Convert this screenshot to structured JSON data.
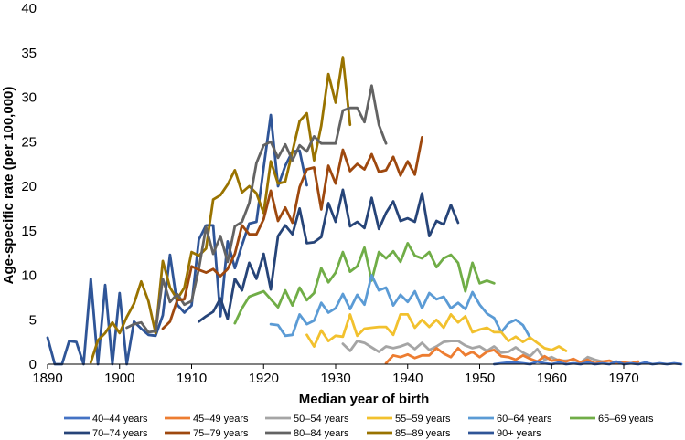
{
  "chart_data": {
    "type": "line",
    "title": "",
    "xlabel": "Median year of birth",
    "ylabel": "Age-specific rate (per 100,000)",
    "xlim": [
      1890,
      1978
    ],
    "ylim": [
      0,
      40
    ],
    "xticks": [
      1890,
      1900,
      1910,
      1920,
      1930,
      1940,
      1950,
      1960,
      1970
    ],
    "yticks": [
      0,
      5,
      10,
      15,
      20,
      25,
      30,
      35,
      40
    ],
    "grid": false,
    "legend_position": "bottom",
    "series": [
      {
        "name": "40–44 years",
        "color": "#4472c4",
        "x": [
          1952,
          1953,
          1954,
          1955,
          1956,
          1957,
          1958,
          1959,
          1960,
          1961,
          1962,
          1963,
          1964,
          1965,
          1966,
          1967,
          1968,
          1969,
          1970,
          1971,
          1972,
          1973,
          1974,
          1975,
          1976,
          1977,
          1978
        ],
        "y": [
          0,
          0.1,
          0.2,
          0.2,
          0.1,
          0,
          0.3,
          0.1,
          0,
          0.2,
          0,
          0.1,
          0,
          0.2,
          0,
          0.1,
          0,
          0.3,
          0,
          0.1,
          0,
          0.2,
          0,
          0.1,
          0,
          0.1,
          0
        ]
      },
      {
        "name": "45–49 years",
        "color": "#ed7d31",
        "x": [
          1937,
          1938,
          1939,
          1940,
          1941,
          1942,
          1943,
          1944,
          1945,
          1946,
          1947,
          1948,
          1949,
          1950,
          1951,
          1952,
          1953,
          1954,
          1955,
          1956,
          1957,
          1958,
          1959,
          1960,
          1961,
          1962,
          1963,
          1964,
          1965,
          1966,
          1967,
          1968,
          1969,
          1970,
          1971,
          1972
        ],
        "y": [
          0.1,
          1.0,
          0.8,
          1.1,
          0.7,
          1.0,
          1.0,
          1.8,
          1.2,
          0.8,
          1.8,
          1.0,
          1.4,
          0.8,
          1.4,
          1.6,
          0.9,
          0.8,
          0.5,
          1.0,
          0.6,
          0.3,
          0.9,
          0.4,
          0.5,
          0.3,
          0.6,
          0.2,
          0.5,
          0.1,
          0.3,
          0.4,
          0.1,
          0.2,
          0.1,
          0.3
        ]
      },
      {
        "name": "50–54 years",
        "color": "#a5a5a5",
        "x": [
          1931,
          1932,
          1933,
          1934,
          1935,
          1936,
          1937,
          1938,
          1939,
          1940,
          1941,
          1942,
          1943,
          1944,
          1945,
          1946,
          1947,
          1948,
          1949,
          1950,
          1951,
          1952,
          1953,
          1954,
          1955,
          1956,
          1957,
          1958,
          1959,
          1960,
          1961,
          1962,
          1963,
          1964,
          1965,
          1966,
          1967
        ],
        "y": [
          2.3,
          1.5,
          2.6,
          2.4,
          1.9,
          1.4,
          2.0,
          1.8,
          2.0,
          2.3,
          1.7,
          2.4,
          1.6,
          2.0,
          2.5,
          2.6,
          2.6,
          2.1,
          1.8,
          2.0,
          1.5,
          2.0,
          1.3,
          1.4,
          1.9,
          1.3,
          0.9,
          1.7,
          0.5,
          0.8,
          0.4,
          0.4,
          0.5,
          0.2,
          0.8,
          0.5,
          0.3
        ]
      },
      {
        "name": "55–59 years",
        "color": "#f2c12e",
        "x": [
          1926,
          1927,
          1928,
          1929,
          1930,
          1931,
          1932,
          1933,
          1934,
          1935,
          1936,
          1937,
          1938,
          1939,
          1940,
          1941,
          1942,
          1943,
          1944,
          1945,
          1946,
          1947,
          1948,
          1949,
          1950,
          1951,
          1952,
          1953,
          1954,
          1955,
          1956,
          1957,
          1958,
          1959,
          1960,
          1961,
          1962
        ],
        "y": [
          3.3,
          2.0,
          3.8,
          2.6,
          3.2,
          3.1,
          5.6,
          3.2,
          4.0,
          4.1,
          4.2,
          4.2,
          3.3,
          5.6,
          5.6,
          4.1,
          5.0,
          4.2,
          5.0,
          4.1,
          5.6,
          4.7,
          5.4,
          3.6,
          3.9,
          4.1,
          3.6,
          3.6,
          2.6,
          3.1,
          2.5,
          3.0,
          2.4,
          1.8,
          1.6,
          2.0,
          1.5
        ]
      },
      {
        "name": "60–64 years",
        "color": "#5b9bd5",
        "x": [
          1921,
          1922,
          1923,
          1924,
          1925,
          1926,
          1927,
          1928,
          1929,
          1930,
          1931,
          1932,
          1933,
          1934,
          1935,
          1936,
          1937,
          1938,
          1939,
          1940,
          1941,
          1942,
          1943,
          1944,
          1945,
          1946,
          1947,
          1948,
          1949,
          1950,
          1951,
          1952,
          1953,
          1954,
          1955,
          1956,
          1957
        ],
        "y": [
          4.5,
          4.4,
          3.2,
          3.3,
          5.6,
          4.5,
          4.9,
          6.9,
          5.8,
          6.3,
          7.9,
          6.2,
          7.8,
          6.7,
          10.0,
          8.3,
          8.6,
          6.6,
          7.8,
          7.0,
          8.2,
          6.3,
          8.0,
          7.3,
          7.6,
          6.3,
          6.9,
          6.2,
          8.1,
          6.7,
          5.7,
          5.2,
          3.6,
          4.6,
          5.0,
          4.4,
          3.0
        ]
      },
      {
        "name": "65–69 years",
        "color": "#70ad47",
        "x": [
          1916,
          1917,
          1918,
          1919,
          1920,
          1921,
          1922,
          1923,
          1924,
          1925,
          1926,
          1927,
          1928,
          1929,
          1930,
          1931,
          1932,
          1933,
          1934,
          1935,
          1936,
          1937,
          1938,
          1939,
          1940,
          1941,
          1942,
          1943,
          1944,
          1945,
          1946,
          1947,
          1948,
          1949,
          1950,
          1951,
          1952
        ],
        "y": [
          4.6,
          6.3,
          7.6,
          7.9,
          8.2,
          7.3,
          6.4,
          8.3,
          6.6,
          8.6,
          7.2,
          8.0,
          10.8,
          9.2,
          10.3,
          12.6,
          10.4,
          11.0,
          13.1,
          9.4,
          12.6,
          11.9,
          12.7,
          11.5,
          13.6,
          12.2,
          11.9,
          12.6,
          10.9,
          11.9,
          12.3,
          11.4,
          8.2,
          11.4,
          9.1,
          9.4,
          9.1
        ]
      },
      {
        "name": "70–74 years",
        "color": "#264478",
        "x": [
          1911,
          1912,
          1913,
          1914,
          1915,
          1916,
          1917,
          1918,
          1919,
          1920,
          1921,
          1922,
          1923,
          1924,
          1925,
          1926,
          1927,
          1928,
          1929,
          1930,
          1931,
          1932,
          1933,
          1934,
          1935,
          1936,
          1937,
          1938,
          1939,
          1940,
          1941,
          1942,
          1943,
          1944,
          1945,
          1946,
          1947
        ],
        "y": [
          4.8,
          5.4,
          5.9,
          7.4,
          5.1,
          9.6,
          8.3,
          11.4,
          9.6,
          12.4,
          8.4,
          14.4,
          15.6,
          14.6,
          17.5,
          13.6,
          13.7,
          14.3,
          18.1,
          16.0,
          19.6,
          15.5,
          16.0,
          15.3,
          18.7,
          15.2,
          17.0,
          18.3,
          16.1,
          16.4,
          16.0,
          19.2,
          14.4,
          16.1,
          15.7,
          17.9,
          15.9
        ]
      },
      {
        "name": "75–79 years",
        "color": "#9e480e",
        "x": [
          1906,
          1907,
          1908,
          1909,
          1910,
          1911,
          1912,
          1913,
          1914,
          1915,
          1916,
          1917,
          1918,
          1919,
          1920,
          1921,
          1922,
          1923,
          1924,
          1925,
          1926,
          1927,
          1928,
          1929,
          1930,
          1931,
          1932,
          1933,
          1934,
          1935,
          1936,
          1937,
          1938,
          1939,
          1940,
          1941,
          1942
        ],
        "y": [
          4.0,
          4.8,
          7.2,
          7.3,
          11.0,
          10.6,
          10.3,
          10.7,
          9.9,
          10.7,
          12.4,
          15.6,
          14.6,
          14.6,
          16.3,
          19.5,
          16.1,
          17.6,
          15.9,
          19.9,
          21.9,
          22.1,
          17.4,
          22.3,
          20.3,
          24.1,
          21.7,
          22.5,
          21.9,
          23.6,
          21.6,
          21.8,
          23.3,
          21.2,
          22.8,
          21.3,
          25.5
        ]
      },
      {
        "name": "80–84 years",
        "color": "#636363",
        "x": [
          1901,
          1902,
          1903,
          1904,
          1905,
          1906,
          1907,
          1908,
          1909,
          1910,
          1911,
          1912,
          1913,
          1914,
          1915,
          1916,
          1917,
          1918,
          1919,
          1920,
          1921,
          1922,
          1923,
          1924,
          1925,
          1926,
          1927,
          1928,
          1929,
          1930,
          1931,
          1932,
          1933,
          1934,
          1935,
          1936,
          1937
        ],
        "y": [
          4.1,
          4.5,
          4.7,
          3.6,
          3.7,
          9.6,
          7.0,
          7.9,
          6.7,
          7.1,
          10.7,
          15.4,
          12.4,
          14.4,
          11.5,
          15.5,
          16.0,
          18.1,
          22.6,
          24.6,
          25.0,
          23.2,
          24.7,
          22.9,
          24.6,
          23.9,
          25.6,
          24.8,
          24.8,
          24.8,
          28.5,
          28.8,
          28.8,
          27.2,
          31.3,
          26.9,
          24.8
        ]
      },
      {
        "name": "85–89 years",
        "color": "#997300",
        "x": [
          1896,
          1897,
          1898,
          1899,
          1900,
          1901,
          1902,
          1903,
          1904,
          1905,
          1906,
          1907,
          1908,
          1909,
          1910,
          1911,
          1912,
          1913,
          1914,
          1915,
          1916,
          1917,
          1918,
          1919,
          1920,
          1921,
          1922,
          1923,
          1924,
          1925,
          1926,
          1927,
          1928,
          1929,
          1930,
          1931,
          1932
        ],
        "y": [
          0.2,
          2.7,
          3.5,
          4.7,
          3.5,
          5.3,
          6.8,
          9.3,
          7.1,
          3.5,
          11.6,
          8.6,
          7.3,
          8.6,
          12.6,
          12.2,
          13.0,
          18.5,
          19.0,
          20.2,
          21.8,
          19.3,
          20.0,
          19.2,
          17.0,
          22.8,
          20.3,
          20.5,
          23.9,
          27.3,
          28.2,
          22.9,
          26.8,
          32.6,
          29.4,
          34.5,
          26.9
        ]
      },
      {
        "name": "90+ years",
        "color": "#2f5597",
        "x": [
          1890,
          1891,
          1892,
          1893,
          1894,
          1895,
          1896,
          1897,
          1898,
          1899,
          1900,
          1901,
          1902,
          1903,
          1904,
          1905,
          1906,
          1907,
          1908,
          1909,
          1910,
          1911,
          1912,
          1913,
          1914,
          1915,
          1916,
          1917,
          1918,
          1919,
          1920,
          1921,
          1922,
          1923,
          1924,
          1925,
          1926
        ],
        "y": [
          3.0,
          0,
          0,
          2.6,
          2.5,
          0,
          9.6,
          0,
          8.9,
          0,
          8.0,
          0,
          4.8,
          4.0,
          3.3,
          3.2,
          5.5,
          12.3,
          6.7,
          5.8,
          6.6,
          14.0,
          15.6,
          15.6,
          5.4,
          13.8,
          10.8,
          13.4,
          15.8,
          16.0,
          22.1,
          28.0,
          20.0,
          22.3,
          23.9,
          24.0,
          20.1
        ]
      }
    ]
  }
}
